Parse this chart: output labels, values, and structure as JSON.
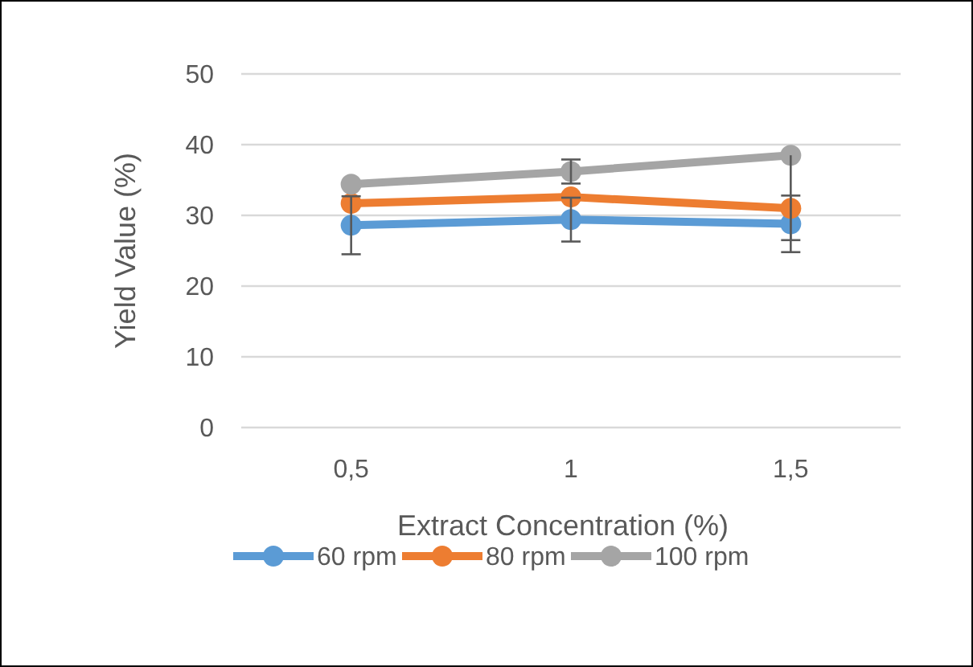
{
  "chart_data": {
    "type": "line",
    "xlabel": "Extract Concentration (%)",
    "ylabel": "Yield Value (%)",
    "categories": [
      "0,5",
      "1",
      "1,5"
    ],
    "series": [
      {
        "name": "60 rpm",
        "color": "#5b9bd5",
        "values": [
          28.6,
          29.4,
          28.8
        ],
        "errors": [
          4.1,
          3.1,
          4.0
        ]
      },
      {
        "name": "80 rpm",
        "color": "#ed7d31",
        "values": [
          31.7,
          32.6,
          31.0
        ]
      },
      {
        "name": "100 rpm",
        "color": "#a5a5a5",
        "values": [
          34.4,
          36.2,
          38.5
        ],
        "errors": [
          null,
          1.7,
          [
            26.5,
            38.5
          ]
        ]
      }
    ],
    "ylim": [
      0,
      50
    ],
    "yticks": [
      0,
      10,
      20,
      30,
      40,
      50
    ],
    "grid": "y",
    "legend": "bottom",
    "marker": "circle",
    "line_style": "solid"
  }
}
